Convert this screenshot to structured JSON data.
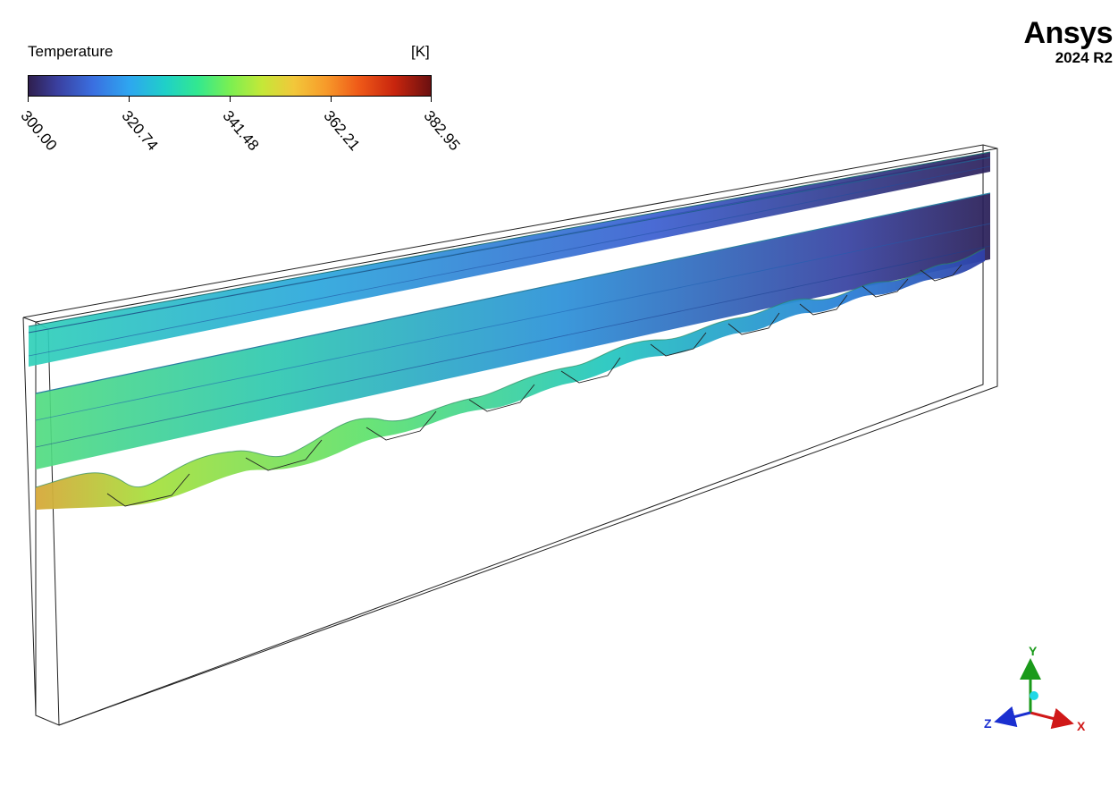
{
  "legend": {
    "title": "Temperature",
    "unit": "[K]",
    "ticks": [
      "300.00",
      "320.74",
      "341.48",
      "362.21",
      "382.95"
    ],
    "min": 300.0,
    "max": 382.95,
    "colormap": "viridis-like turbo"
  },
  "brand": {
    "name": "Ansys",
    "version": "2024 R2"
  },
  "triad": {
    "x_label": "X",
    "y_label": "Y",
    "z_label": "Z",
    "x_color": "#d01818",
    "y_color": "#1a9a1a",
    "z_color": "#1a2fd0"
  },
  "colors": {
    "streamline_cold": "#2c2a6e",
    "streamline_mid": "#2ea6d8",
    "streamline_warm": "#84e64a",
    "streamline_hot": "#d4a23a"
  }
}
